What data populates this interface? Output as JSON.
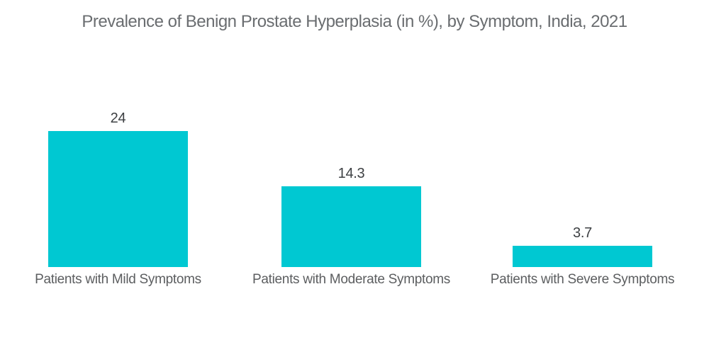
{
  "chart_data": {
    "type": "bar",
    "title": "Prevalence of Benign Prostate Hyperplasia (in %), by Symptom, India, 2021",
    "categories": [
      "Patients with Mild Symptoms",
      "Patients with Moderate Symptoms",
      "Patients with Severe Symptoms"
    ],
    "values": [
      24,
      14.3,
      3.7
    ],
    "value_labels": [
      "24",
      "14.3",
      "3.7"
    ],
    "xlabel": "",
    "ylabel": "",
    "ylim": [
      0,
      24
    ],
    "grid": false,
    "legend": false,
    "bar_color": "#00C8D2",
    "title_color": "#6A6D70",
    "value_label_color": "#3D4043",
    "category_label_color": "#5C5E60",
    "background_color": "#FFFFFF"
  }
}
